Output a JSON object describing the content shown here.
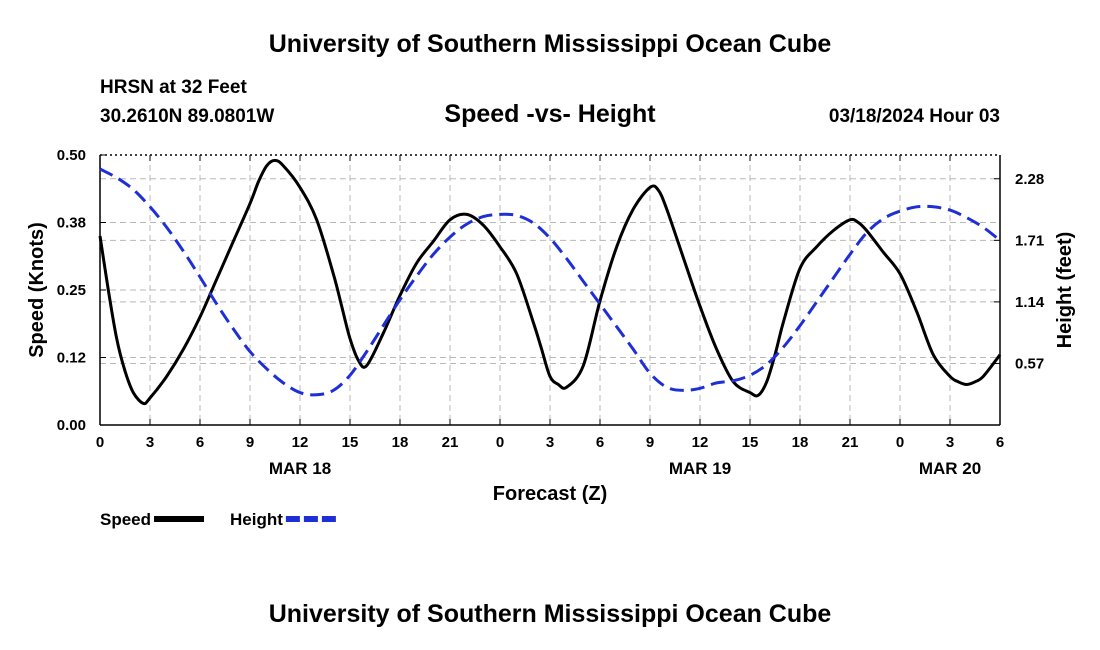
{
  "header": {
    "main_title": "University of Southern Mississippi Ocean Cube",
    "station": "HRSN at 32 Feet",
    "coordinates": "30.2610N  89.0801W",
    "subtitle": "Speed -vs- Height",
    "datetime": "03/18/2024 Hour 03"
  },
  "footer": {
    "title": "University of Southern Mississippi Ocean Cube"
  },
  "chart_data": {
    "type": "line",
    "title": "Speed -vs- Height",
    "xlabel": "Forecast (Z)",
    "ylabel": "Speed (Knots)",
    "y2label": "Height (feet)",
    "xlim": [
      0,
      54
    ],
    "ylim": [
      0,
      0.5
    ],
    "y2lim": [
      0,
      2.5
    ],
    "grid": true,
    "x_ticks": [
      0,
      3,
      6,
      9,
      12,
      15,
      18,
      21,
      24,
      27,
      30,
      33,
      36,
      39,
      42,
      45,
      48,
      51,
      54
    ],
    "x_tick_labels": [
      "0",
      "3",
      "6",
      "9",
      "12",
      "15",
      "18",
      "21",
      "0",
      "3",
      "6",
      "9",
      "12",
      "15",
      "18",
      "21",
      "0",
      "3",
      "6"
    ],
    "date_labels": [
      {
        "x": 12,
        "label": "MAR 18"
      },
      {
        "x": 36,
        "label": "MAR 19"
      },
      {
        "x": 51,
        "label": "MAR 20"
      }
    ],
    "y_ticks": [
      0.0,
      0.125,
      0.25,
      0.375,
      0.5
    ],
    "y_tick_labels": [
      "0.00",
      "0.12",
      "0.25",
      "0.38",
      "0.50"
    ],
    "y2_ticks": [
      0.57,
      1.14,
      1.71,
      2.28
    ],
    "y2_tick_labels": [
      "0.57",
      "1.14",
      "1.71",
      "2.28"
    ],
    "series": [
      {
        "name": "Speed",
        "axis": "left",
        "color": "#000000",
        "dash": "solid",
        "x": [
          0,
          0.5,
          1,
          1.5,
          2,
          2.6,
          3,
          4,
          5,
          6,
          7,
          8,
          9,
          9.5,
          10,
          10.5,
          11,
          12,
          13,
          14,
          14.5,
          15,
          15.5,
          16,
          17,
          18,
          19,
          20,
          21,
          22,
          23,
          24,
          25,
          26,
          26.5,
          27,
          27.5,
          28,
          29,
          30,
          31,
          32,
          33,
          33.5,
          34,
          35,
          36,
          37,
          38,
          39,
          39.5,
          40,
          40.5,
          41,
          42,
          43,
          44,
          45,
          45.5,
          46,
          47,
          48,
          49,
          50,
          51,
          51.5,
          52,
          52.5,
          53,
          54
        ],
        "values": [
          0.35,
          0.25,
          0.16,
          0.1,
          0.06,
          0.04,
          0.05,
          0.09,
          0.14,
          0.2,
          0.27,
          0.34,
          0.41,
          0.45,
          0.48,
          0.49,
          0.48,
          0.44,
          0.38,
          0.28,
          0.22,
          0.16,
          0.12,
          0.11,
          0.17,
          0.24,
          0.3,
          0.34,
          0.38,
          0.39,
          0.37,
          0.33,
          0.28,
          0.19,
          0.14,
          0.09,
          0.075,
          0.07,
          0.11,
          0.23,
          0.33,
          0.4,
          0.44,
          0.435,
          0.4,
          0.31,
          0.22,
          0.14,
          0.08,
          0.06,
          0.055,
          0.08,
          0.13,
          0.19,
          0.29,
          0.33,
          0.36,
          0.38,
          0.375,
          0.36,
          0.32,
          0.28,
          0.21,
          0.13,
          0.09,
          0.08,
          0.075,
          0.08,
          0.09,
          0.13
        ]
      },
      {
        "name": "Height",
        "axis": "right",
        "color": "#1f2fd6",
        "dash": "dashed",
        "x": [
          0,
          1,
          2,
          3,
          4,
          5,
          6,
          7,
          8,
          9,
          10,
          11,
          12,
          13,
          14,
          15,
          16,
          17,
          18,
          19,
          20,
          21,
          22,
          23,
          24,
          25,
          26,
          27,
          28,
          29,
          30,
          31,
          32,
          33,
          34,
          35,
          36,
          37,
          38,
          39,
          40,
          41,
          42,
          43,
          44,
          45,
          46,
          47,
          48,
          49,
          50,
          51,
          52,
          53,
          54
        ],
        "values": [
          2.37,
          2.29,
          2.18,
          2.02,
          1.83,
          1.61,
          1.37,
          1.12,
          0.89,
          0.68,
          0.52,
          0.39,
          0.3,
          0.28,
          0.32,
          0.46,
          0.68,
          0.92,
          1.16,
          1.38,
          1.58,
          1.74,
          1.86,
          1.93,
          1.95,
          1.94,
          1.87,
          1.73,
          1.54,
          1.33,
          1.12,
          0.91,
          0.7,
          0.48,
          0.35,
          0.32,
          0.34,
          0.39,
          0.41,
          0.46,
          0.56,
          0.72,
          0.92,
          1.14,
          1.36,
          1.58,
          1.78,
          1.91,
          1.98,
          2.02,
          2.02,
          1.99,
          1.92,
          1.83,
          1.71
        ]
      }
    ],
    "legend": [
      {
        "label": "Speed",
        "color": "#000000",
        "dash": "solid"
      },
      {
        "label": "Height",
        "color": "#1f2fd6",
        "dash": "dashed"
      }
    ],
    "legend_position": "bottom-left"
  }
}
